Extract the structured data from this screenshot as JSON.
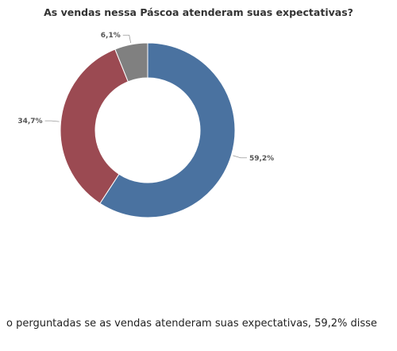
{
  "chart_data": {
    "type": "pie",
    "title": "As vendas nessa Páscoa atenderam suas expectativas?",
    "slices": [
      {
        "value": 59.2,
        "label": "59,2%",
        "color": "#4a72a0"
      },
      {
        "value": 34.7,
        "label": "34,7%",
        "color": "#9b4a52"
      },
      {
        "value": 6.1,
        "label": "6,1%",
        "color": "#808080"
      }
    ],
    "donut": true,
    "start_angle_deg": 0,
    "direction": "clockwise",
    "legend": "none"
  },
  "caption": {
    "text": "o perguntadas se as vendas atenderam suas expectativas, 59,2% disse"
  }
}
